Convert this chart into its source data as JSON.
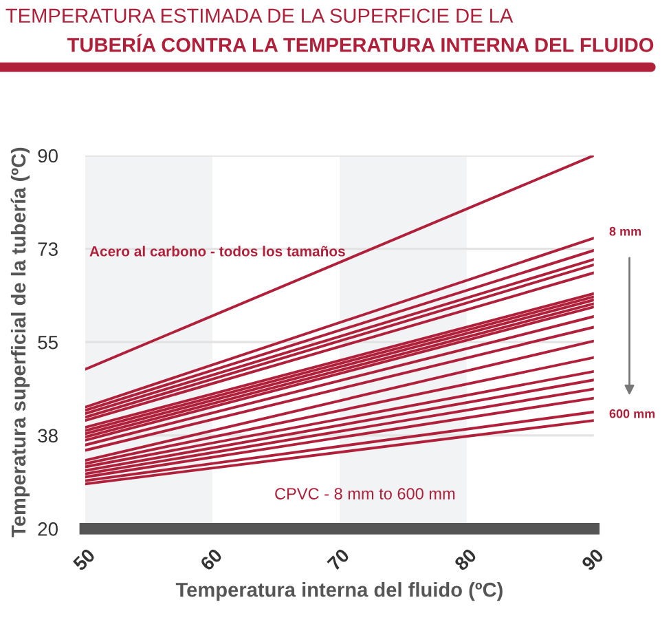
{
  "chart_data": {
    "type": "line",
    "title": "TEMPERATURA ESTIMADA DE LA SUPERFICIE DE LA",
    "subtitle": "TUBERÍA CONTRA LA TEMPERATURA INTERNA DEL FLUIDO",
    "xlabel": "Temperatura interna del fluido (ºC)",
    "ylabel": "Temperatura superficial de la tubería (ºC)",
    "x": [
      50,
      90
    ],
    "series": [
      {
        "color": "#b0203a",
        "values": [
          49.9,
          90
        ]
      },
      {
        "color": "#b0203a",
        "values": [
          42.8,
          74.5
        ]
      },
      {
        "color": "#b0203a",
        "values": [
          42.2,
          72.2
        ]
      },
      {
        "color": "#b0203a",
        "values": [
          41.6,
          70.5
        ]
      },
      {
        "color": "#b0203a",
        "values": [
          40.9,
          69.5
        ]
      },
      {
        "color": "#b0203a",
        "values": [
          40.3,
          68.0
        ]
      },
      {
        "color": "#b0203a",
        "values": [
          39.0,
          64.1
        ]
      },
      {
        "color": "#b0203a",
        "values": [
          38.4,
          63.5
        ]
      },
      {
        "color": "#b0203a",
        "values": [
          37.8,
          62.9
        ]
      },
      {
        "color": "#b0203a",
        "values": [
          37.2,
          62.2
        ]
      },
      {
        "color": "#b0203a",
        "values": [
          36.6,
          61.6
        ]
      },
      {
        "color": "#b0203a",
        "values": [
          35.7,
          59.8
        ]
      },
      {
        "color": "#b0203a",
        "values": [
          34.7,
          57.8
        ]
      },
      {
        "color": "#b0203a",
        "values": [
          32.8,
          55.2
        ]
      },
      {
        "color": "#b0203a",
        "values": [
          32.2,
          52.1
        ]
      },
      {
        "color": "#b0203a",
        "values": [
          31.6,
          49.5
        ]
      },
      {
        "color": "#b0203a",
        "values": [
          30.9,
          47.9
        ]
      },
      {
        "color": "#b0203a",
        "values": [
          30.3,
          46.2
        ]
      },
      {
        "color": "#b0203a",
        "values": [
          29.7,
          44.5
        ]
      },
      {
        "color": "#b0203a",
        "values": [
          29.0,
          41.9
        ]
      },
      {
        "color": "#b0203a",
        "values": [
          28.4,
          40.3
        ]
      }
    ],
    "xlim": [
      50,
      90
    ],
    "xticks": [
      50,
      60,
      70,
      80,
      90
    ],
    "ylim": [
      20,
      90
    ],
    "yticks": [
      20,
      {
        "value": 37.5,
        "label": "38"
      },
      55,
      {
        "value": 72.5,
        "label": "73"
      },
      90
    ],
    "bands": [
      {
        "axis": "x",
        "from": 50,
        "to": 60,
        "color": "#f2f3f5"
      },
      {
        "axis": "x",
        "from": 70,
        "to": 80,
        "color": "#f2f3f5"
      }
    ],
    "annotations": [
      "Acero al carbono - todos los tamaños",
      "CPVC - 8 mm to 600 mm",
      {
        "text": "8 mm",
        "x": 90,
        "y": 74.5
      },
      {
        "text": "600 mm",
        "x": 90,
        "y": 40.3
      }
    ],
    "grid": "y",
    "legend": false,
    "marker": "none",
    "line_style": "solid"
  }
}
